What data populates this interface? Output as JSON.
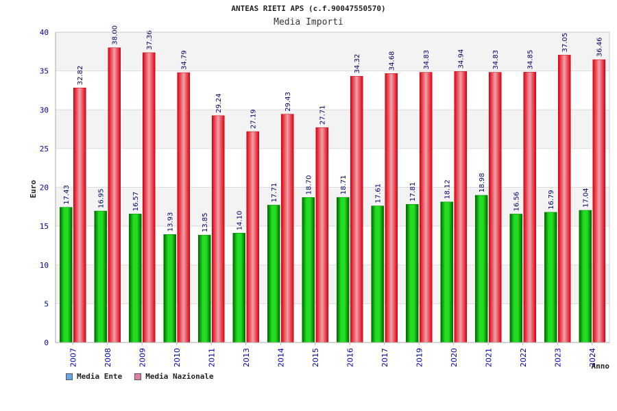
{
  "chart_data": {
    "type": "bar",
    "title": "ANTEAS RIETI APS (c.f.90047550570)",
    "subtitle": "Media Importi",
    "xlabel": "Anno",
    "ylabel": "Euro",
    "ylim": [
      0,
      40
    ],
    "yticks": [
      "0",
      "5",
      "10",
      "15",
      "20",
      "25",
      "30",
      "35",
      "40"
    ],
    "categories": [
      "2007",
      "2008",
      "2009",
      "2010",
      "2011",
      "2013",
      "2014",
      "2015",
      "2016",
      "2017",
      "2019",
      "2020",
      "2021",
      "2022",
      "2023",
      "2024"
    ],
    "series": [
      {
        "name": "Media Ente",
        "color": "#00bb00",
        "values": [
          17.43,
          16.95,
          16.57,
          13.93,
          13.85,
          14.1,
          17.71,
          18.7,
          18.71,
          17.61,
          17.81,
          18.12,
          18.98,
          16.56,
          16.79,
          17.04
        ],
        "labels": [
          "17.43",
          "16.95",
          "16.57",
          "13.93",
          "13.85",
          "14.10",
          "17.71",
          "18.70",
          "18.71",
          "17.61",
          "17.81",
          "18.12",
          "18.98",
          "16.56",
          "16.79",
          "17.04"
        ]
      },
      {
        "name": "Media Nazionale",
        "color": "#ee1122",
        "values": [
          32.82,
          38.0,
          37.36,
          34.79,
          29.24,
          27.19,
          29.43,
          27.71,
          34.32,
          34.68,
          34.83,
          34.94,
          34.83,
          34.85,
          37.05,
          36.46
        ],
        "labels": [
          "32.82",
          "38.00",
          "37.36",
          "34.79",
          "29.24",
          "27.19",
          "29.43",
          "27.71",
          "34.32",
          "34.68",
          "34.83",
          "34.94",
          "34.83",
          "34.85",
          "37.05",
          "36.46"
        ]
      }
    ],
    "grid": true,
    "legend_position": "bottom-left"
  },
  "legend": {
    "items": [
      {
        "label": "Media Ente",
        "color": "#6aa6e6"
      },
      {
        "label": "Media Nazionale",
        "color": "#e07fa8"
      }
    ]
  }
}
